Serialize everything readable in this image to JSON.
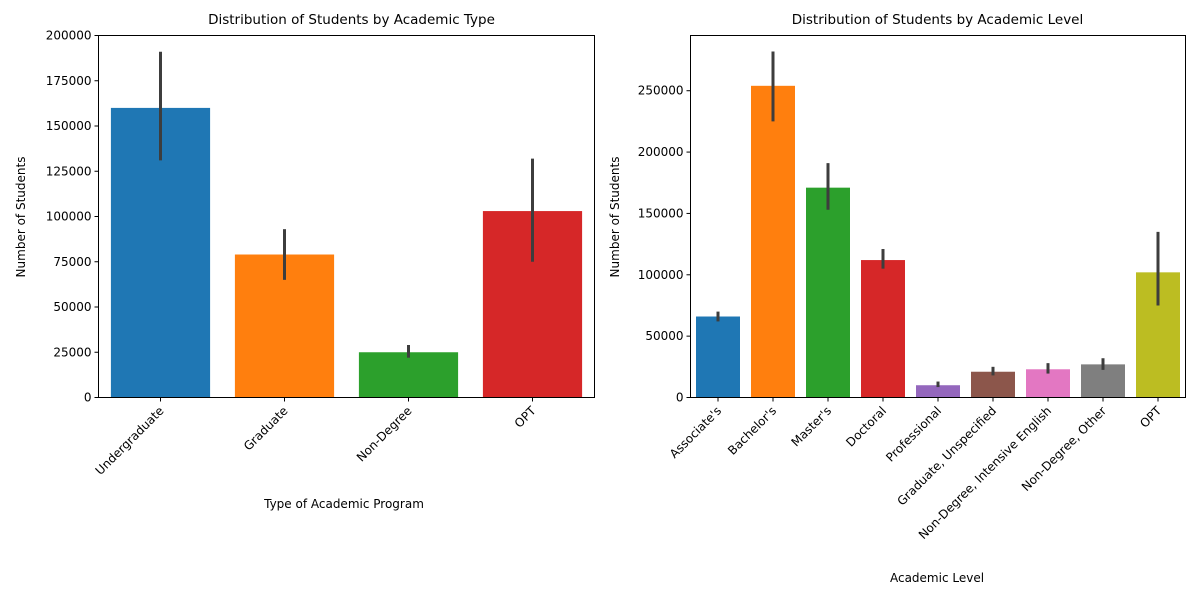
{
  "chart_data": [
    {
      "type": "bar",
      "title": "Distribution of Students by Academic Type",
      "xlabel": "Type of Academic Program",
      "ylabel": "Number of Students",
      "ylim": [
        0,
        200000
      ],
      "yticks": [
        0,
        25000,
        50000,
        75000,
        100000,
        125000,
        150000,
        175000,
        200000
      ],
      "tick_rotation": 45,
      "grid": false,
      "legend": "none",
      "categories": [
        "Undergraduate",
        "Graduate",
        "Non-Degree",
        "OPT"
      ],
      "values": [
        160000,
        79000,
        25000,
        103000
      ],
      "error_bars": [
        [
          131000,
          191000
        ],
        [
          65000,
          93000
        ],
        [
          22000,
          29000
        ],
        [
          75000,
          132000
        ]
      ],
      "colors": [
        "#1f77b4",
        "#ff7f0e",
        "#2ca02c",
        "#d62728"
      ]
    },
    {
      "type": "bar",
      "title": "Distribution of Students by Academic Level",
      "xlabel": "Academic Level",
      "ylabel": "Number of Students",
      "ylim": [
        0,
        295000
      ],
      "yticks": [
        0,
        50000,
        100000,
        150000,
        200000,
        250000
      ],
      "tick_rotation": 45,
      "grid": false,
      "legend": "none",
      "categories": [
        "Associate's",
        "Bachelor's",
        "Master's",
        "Doctoral",
        "Professional",
        "Graduate, Unspecified",
        "Non-Degree, Intensive English",
        "Non-Degree, Other",
        "OPT"
      ],
      "values": [
        66000,
        254000,
        171000,
        112000,
        10000,
        21000,
        23000,
        27000,
        102000
      ],
      "error_bars": [
        [
          62000,
          70000
        ],
        [
          225000,
          282000
        ],
        [
          153000,
          191000
        ],
        [
          105000,
          121000
        ],
        [
          8500,
          13000
        ],
        [
          18000,
          25000
        ],
        [
          19500,
          28000
        ],
        [
          22500,
          32000
        ],
        [
          75000,
          135000
        ]
      ],
      "colors": [
        "#1f77b4",
        "#ff7f0e",
        "#2ca02c",
        "#d62728",
        "#9467bd",
        "#8c564b",
        "#e377c2",
        "#7f7f7f",
        "#bcbd22"
      ]
    }
  ]
}
